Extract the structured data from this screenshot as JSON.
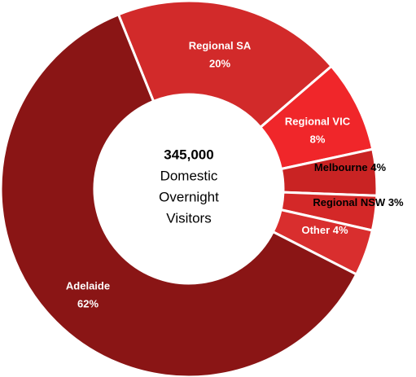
{
  "chart_data": {
    "type": "donut",
    "center_text": {
      "headline": "345,000",
      "lines": [
        "Domestic",
        "Overnight",
        "Visitors"
      ]
    },
    "categories": [
      "Regional SA",
      "Regional VIC",
      "Melbourne",
      "Regional NSW",
      "Other",
      "Adelaide"
    ],
    "values": [
      20,
      8,
      4,
      3,
      4,
      62
    ],
    "value_labels": [
      "20%",
      "8%",
      "4%",
      "3%",
      "4%",
      "62%"
    ],
    "colors": [
      "#d22a2a",
      "#f0262a",
      "#c92323",
      "#d42828",
      "#d92e2e",
      "#8a1515"
    ],
    "label_colors": [
      "#ffffff",
      "#ffffff",
      "#000000",
      "#000000",
      "#ffffff",
      "#ffffff"
    ]
  }
}
